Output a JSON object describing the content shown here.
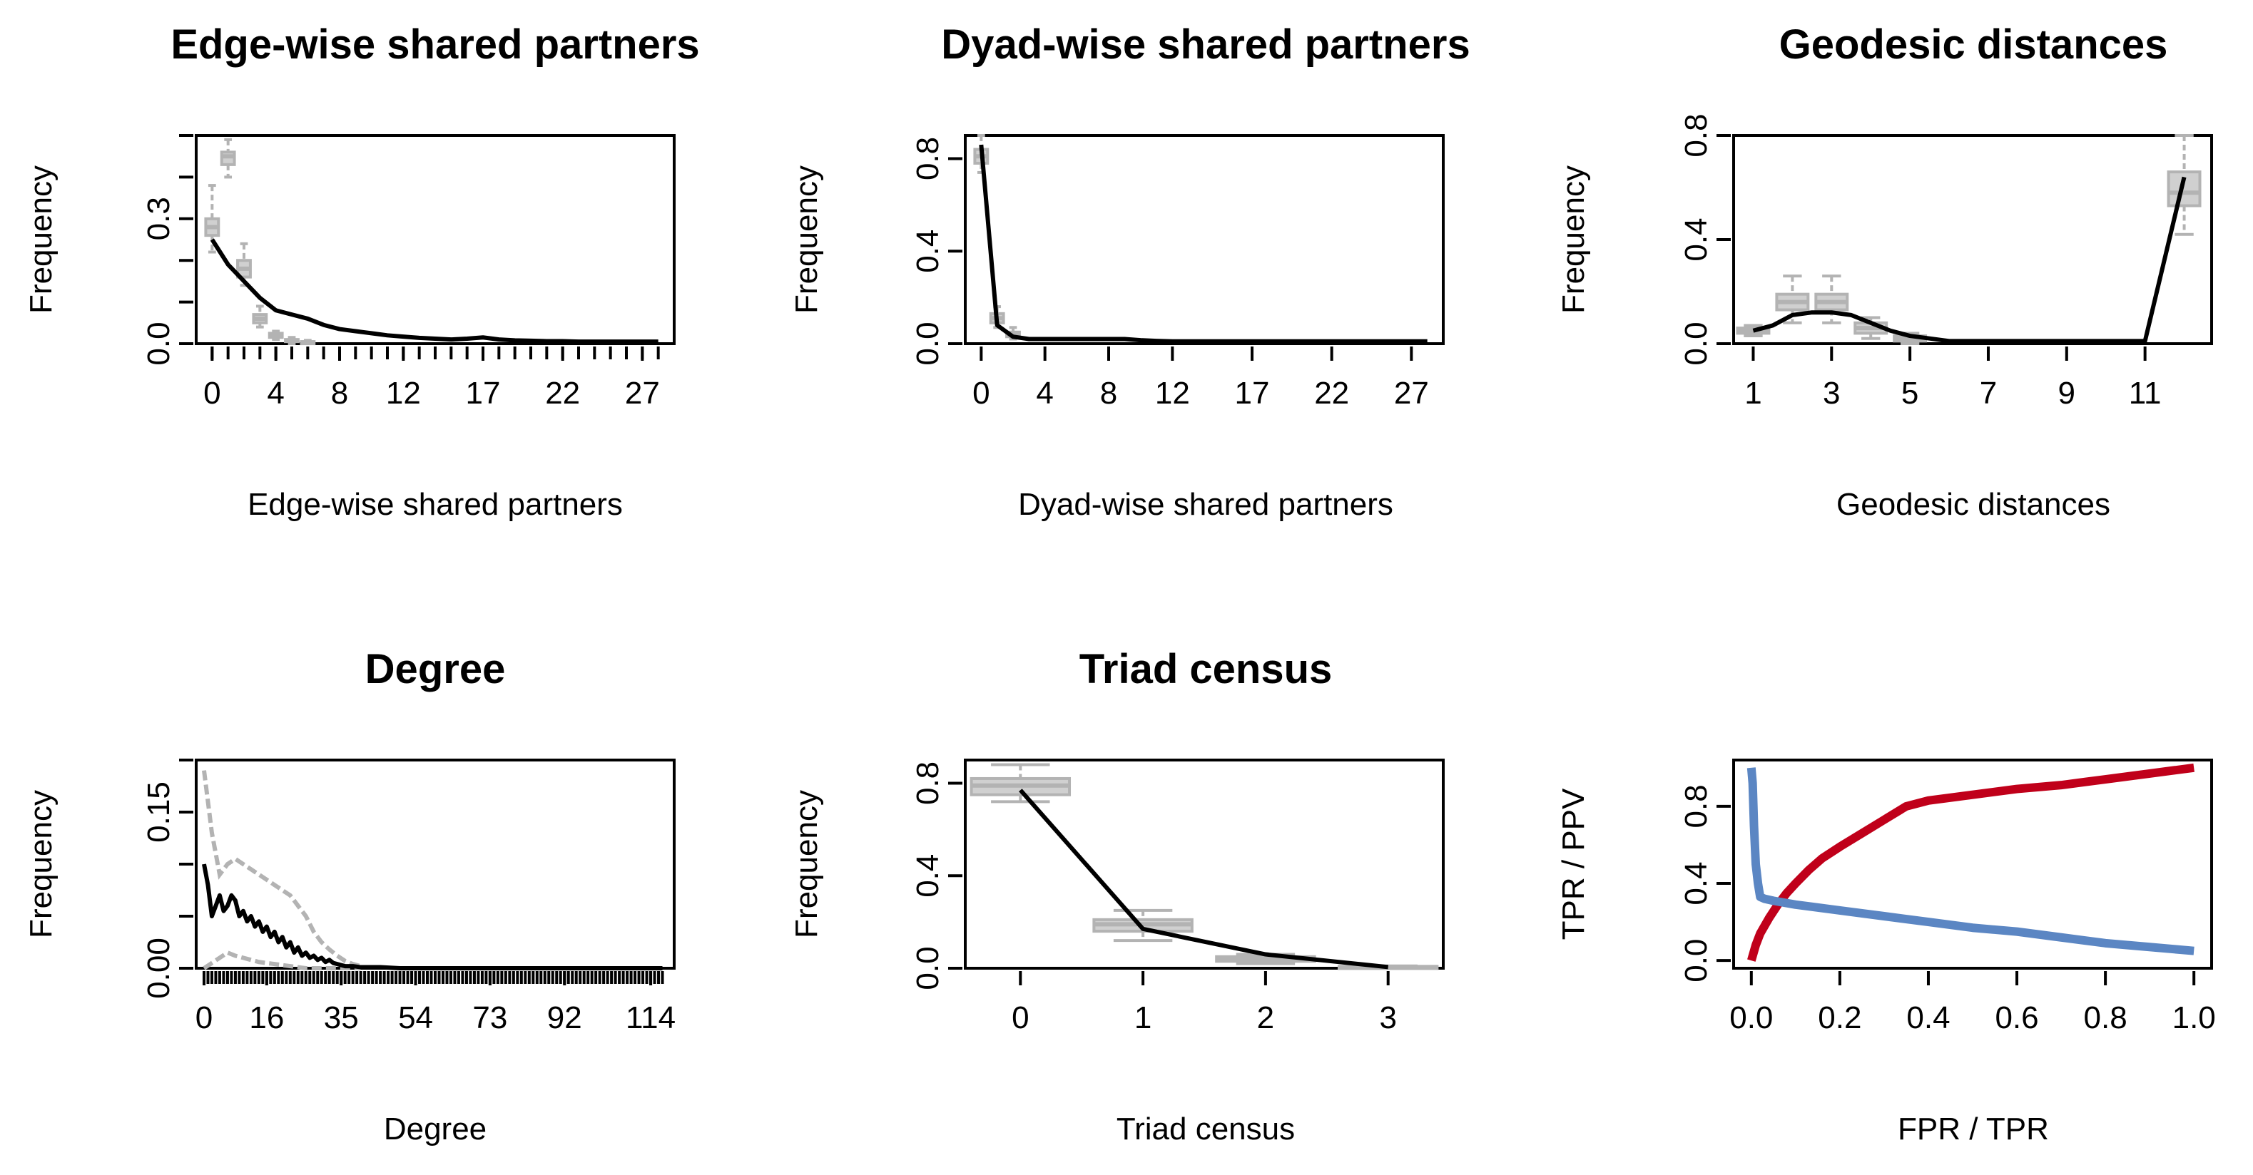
{
  "colors": {
    "simulated": "#b3b3b3",
    "observed": "#000000",
    "roc": "#c0001a",
    "pr": "#5b86c3"
  },
  "chart_data": [
    {
      "type": "box",
      "title": "Edge-wise shared partners",
      "xlabel": "Edge-wise shared partners",
      "ylabel": "Frequency",
      "xlim": [
        -1,
        29
      ],
      "ylim": [
        0,
        0.5
      ],
      "x_ticks": [
        0,
        4,
        8,
        12,
        17,
        22,
        27
      ],
      "y_ticks": [
        0.0,
        0.3
      ],
      "y_tick_labels": [
        "0.0",
        "0.3"
      ],
      "minor_ticks": [
        0,
        1,
        2,
        3,
        4,
        5,
        6,
        7,
        8,
        9,
        10,
        11,
        12,
        13,
        14,
        15,
        16,
        17,
        18,
        19,
        20,
        21,
        22,
        23,
        24,
        25,
        26,
        27,
        28
      ],
      "boxes": [
        {
          "x": 0,
          "lo": 0.22,
          "q1": 0.26,
          "med": 0.28,
          "q3": 0.3,
          "hi": 0.38
        },
        {
          "x": 1,
          "lo": 0.4,
          "q1": 0.43,
          "med": 0.45,
          "q3": 0.46,
          "hi": 0.49
        },
        {
          "x": 2,
          "lo": 0.14,
          "q1": 0.16,
          "med": 0.18,
          "q3": 0.2,
          "hi": 0.24
        },
        {
          "x": 3,
          "lo": 0.04,
          "q1": 0.05,
          "med": 0.06,
          "q3": 0.07,
          "hi": 0.09
        },
        {
          "x": 4,
          "lo": 0.01,
          "q1": 0.015,
          "med": 0.02,
          "q3": 0.025,
          "hi": 0.03
        },
        {
          "x": 5,
          "lo": 0.0,
          "q1": 0.005,
          "med": 0.008,
          "q3": 0.01,
          "hi": 0.015
        },
        {
          "x": 6,
          "lo": 0.0,
          "q1": 0.0,
          "med": 0.003,
          "q3": 0.005,
          "hi": 0.008
        }
      ],
      "observed": {
        "x": [
          0,
          1,
          2,
          3,
          4,
          5,
          6,
          7,
          8,
          9,
          10,
          11,
          12,
          13,
          14,
          15,
          16,
          17,
          18,
          19,
          20,
          21,
          22,
          23,
          24,
          25,
          26,
          27,
          28
        ],
        "y": [
          0.25,
          0.19,
          0.15,
          0.11,
          0.08,
          0.07,
          0.06,
          0.045,
          0.035,
          0.03,
          0.025,
          0.02,
          0.017,
          0.014,
          0.012,
          0.01,
          0.012,
          0.015,
          0.01,
          0.008,
          0.007,
          0.006,
          0.006,
          0.005,
          0.005,
          0.005,
          0.005,
          0.005,
          0.005
        ]
      }
    },
    {
      "type": "box",
      "title": "Dyad-wise shared partners",
      "xlabel": "Dyad-wise shared partners",
      "ylabel": "Frequency",
      "xlim": [
        -1,
        29
      ],
      "ylim": [
        0,
        0.9
      ],
      "x_ticks": [
        0,
        4,
        8,
        12,
        17,
        22,
        27
      ],
      "y_ticks": [
        0.0,
        0.4,
        0.8
      ],
      "y_tick_labels": [
        "0.0",
        "0.4",
        "0.8"
      ],
      "minor_ticks": [],
      "boxes": [
        {
          "x": 0,
          "lo": 0.74,
          "q1": 0.78,
          "med": 0.81,
          "q3": 0.84,
          "hi": 0.9
        },
        {
          "x": 1,
          "lo": 0.07,
          "q1": 0.09,
          "med": 0.11,
          "q3": 0.13,
          "hi": 0.16
        },
        {
          "x": 2,
          "lo": 0.02,
          "q1": 0.03,
          "med": 0.04,
          "q3": 0.05,
          "hi": 0.07
        }
      ],
      "observed": {
        "x": [
          0,
          1,
          2,
          3,
          4,
          5,
          6,
          7,
          8,
          9,
          10,
          11,
          12,
          13,
          14,
          15,
          16,
          17,
          18,
          19,
          20,
          21,
          22,
          23,
          24,
          25,
          26,
          27,
          28
        ],
        "y": [
          0.86,
          0.08,
          0.03,
          0.02,
          0.02,
          0.02,
          0.02,
          0.02,
          0.02,
          0.02,
          0.015,
          0.012,
          0.01,
          0.01,
          0.01,
          0.01,
          0.01,
          0.01,
          0.01,
          0.01,
          0.01,
          0.01,
          0.01,
          0.01,
          0.01,
          0.01,
          0.01,
          0.01,
          0.01
        ]
      }
    },
    {
      "type": "box",
      "title": "Geodesic distances",
      "xlabel": "Geodesic distances",
      "ylabel": "Frequency",
      "xlim": [
        0.5,
        12.7
      ],
      "ylim": [
        0,
        0.8
      ],
      "x_ticks": [
        1,
        3,
        5,
        7,
        9,
        11
      ],
      "y_ticks": [
        0.0,
        0.4,
        0.8
      ],
      "y_tick_labels": [
        "0.0",
        "0.4",
        "0.8"
      ],
      "minor_ticks": [],
      "boxes": [
        {
          "x": 1,
          "lo": 0.03,
          "q1": 0.04,
          "med": 0.05,
          "q3": 0.06,
          "hi": 0.07
        },
        {
          "x": 2,
          "lo": 0.08,
          "q1": 0.13,
          "med": 0.16,
          "q3": 0.19,
          "hi": 0.26
        },
        {
          "x": 3,
          "lo": 0.08,
          "q1": 0.13,
          "med": 0.16,
          "q3": 0.19,
          "hi": 0.26
        },
        {
          "x": 4,
          "lo": 0.02,
          "q1": 0.04,
          "med": 0.06,
          "q3": 0.08,
          "hi": 0.1
        },
        {
          "x": 5,
          "lo": 0.0,
          "q1": 0.01,
          "med": 0.02,
          "q3": 0.03,
          "hi": 0.04
        },
        {
          "x": 12,
          "lo": 0.42,
          "q1": 0.53,
          "med": 0.58,
          "q3": 0.66,
          "hi": 0.8
        }
      ],
      "observed": {
        "x": [
          1,
          1.5,
          2,
          2.5,
          3,
          3.5,
          4,
          4.5,
          5,
          5.5,
          6,
          7,
          8,
          9,
          10,
          11,
          12
        ],
        "y": [
          0.05,
          0.07,
          0.11,
          0.12,
          0.12,
          0.11,
          0.08,
          0.05,
          0.03,
          0.02,
          0.01,
          0.01,
          0.01,
          0.01,
          0.01,
          0.01,
          0.64
        ]
      }
    },
    {
      "type": "box",
      "title": "Degree",
      "xlabel": "Degree",
      "ylabel": "Frequency",
      "xlim": [
        -2,
        120
      ],
      "ylim": [
        0,
        0.2
      ],
      "x_ticks": [
        0,
        16,
        35,
        54,
        73,
        92,
        114
      ],
      "y_ticks": [
        0.0,
        0.15
      ],
      "y_tick_labels": [
        "0.00",
        "0.15"
      ],
      "minor_ticks": [
        0,
        1,
        2,
        3,
        4,
        5,
        6,
        7,
        8,
        9,
        10,
        11,
        12,
        13,
        14,
        15,
        16,
        17,
        18,
        19,
        20,
        21,
        22,
        23,
        24,
        25,
        26,
        27,
        28,
        29,
        30,
        31,
        32,
        33,
        34,
        35,
        36,
        37,
        38,
        39,
        40,
        41,
        42,
        43,
        44,
        45,
        46,
        47,
        48,
        49,
        50,
        51,
        52,
        53,
        54,
        55,
        56,
        57,
        58,
        59,
        60,
        61,
        62,
        63,
        64,
        65,
        66,
        67,
        68,
        69,
        70,
        71,
        72,
        73,
        74,
        75,
        76,
        77,
        78,
        79,
        80,
        81,
        82,
        83,
        84,
        85,
        86,
        87,
        88,
        89,
        90,
        91,
        92,
        93,
        94,
        95,
        96,
        97,
        98,
        99,
        100,
        101,
        102,
        103,
        104,
        105,
        106,
        107,
        108,
        109,
        110,
        111,
        112,
        113,
        114,
        115,
        116,
        117
      ],
      "sim_band": {
        "x": [
          0,
          2,
          4,
          6,
          8,
          10,
          12,
          14,
          16,
          18,
          20,
          22,
          24,
          26,
          28,
          30,
          32,
          34,
          36,
          38,
          40
        ],
        "lo": [
          0.0,
          0.005,
          0.01,
          0.015,
          0.012,
          0.01,
          0.008,
          0.006,
          0.005,
          0.004,
          0.003,
          0.002,
          0.001,
          0.0,
          0.0,
          0.0,
          0.0,
          0.0,
          0.0,
          0.0,
          0.0
        ],
        "hi": [
          0.19,
          0.13,
          0.09,
          0.1,
          0.105,
          0.1,
          0.095,
          0.09,
          0.085,
          0.08,
          0.075,
          0.07,
          0.06,
          0.05,
          0.035,
          0.025,
          0.018,
          0.012,
          0.007,
          0.004,
          0.002
        ]
      },
      "observed": {
        "x": [
          0,
          1,
          2,
          3,
          4,
          5,
          6,
          7,
          8,
          9,
          10,
          11,
          12,
          13,
          14,
          15,
          16,
          17,
          18,
          19,
          20,
          21,
          22,
          23,
          24,
          25,
          26,
          27,
          28,
          29,
          30,
          31,
          32,
          33,
          34,
          35,
          36,
          38,
          40,
          45,
          50,
          60,
          70,
          80,
          90,
          100,
          110,
          117
        ],
        "y": [
          0.1,
          0.08,
          0.05,
          0.06,
          0.07,
          0.055,
          0.06,
          0.07,
          0.065,
          0.05,
          0.055,
          0.045,
          0.05,
          0.04,
          0.045,
          0.035,
          0.04,
          0.03,
          0.035,
          0.025,
          0.03,
          0.02,
          0.025,
          0.015,
          0.02,
          0.012,
          0.015,
          0.01,
          0.012,
          0.008,
          0.01,
          0.006,
          0.008,
          0.005,
          0.004,
          0.003,
          0.002,
          0.002,
          0.001,
          0.001,
          0.0,
          0.0,
          0.0,
          0.0,
          0.0,
          0.0,
          0.0,
          0.0
        ]
      }
    },
    {
      "type": "box",
      "title": "Triad census",
      "xlabel": "Triad census",
      "ylabel": "Frequency",
      "xlim": [
        -0.45,
        3.45
      ],
      "ylim": [
        0,
        0.9
      ],
      "x_ticks": [
        0,
        1,
        2,
        3
      ],
      "y_ticks": [
        0.0,
        0.4,
        0.8
      ],
      "y_tick_labels": [
        "0.0",
        "0.4",
        "0.8"
      ],
      "minor_ticks": [],
      "boxes": [
        {
          "x": 0,
          "lo": 0.72,
          "q1": 0.75,
          "med": 0.79,
          "q3": 0.82,
          "hi": 0.88
        },
        {
          "x": 1,
          "lo": 0.12,
          "q1": 0.16,
          "med": 0.19,
          "q3": 0.21,
          "hi": 0.25
        },
        {
          "x": 2,
          "lo": 0.02,
          "q1": 0.03,
          "med": 0.04,
          "q3": 0.05,
          "hi": 0.06
        },
        {
          "x": 3,
          "lo": 0.0,
          "q1": 0.003,
          "med": 0.005,
          "q3": 0.008,
          "hi": 0.01
        }
      ],
      "observed": {
        "x": [
          0,
          1,
          2,
          3
        ],
        "y": [
          0.77,
          0.17,
          0.06,
          0.005
        ]
      }
    },
    {
      "type": "line",
      "title": "",
      "xlabel": "FPR / TPR",
      "ylabel": "TPR / PPV",
      "xlim": [
        -0.04,
        1.04
      ],
      "ylim": [
        -0.04,
        1.04
      ],
      "x_ticks": [
        0.0,
        0.2,
        0.4,
        0.6,
        0.8,
        1.0
      ],
      "x_tick_labels": [
        "0.0",
        "0.2",
        "0.4",
        "0.6",
        "0.8",
        "1.0"
      ],
      "y_ticks": [
        0.0,
        0.4,
        0.8
      ],
      "y_tick_labels": [
        "0.0",
        "0.4",
        "0.8"
      ],
      "series": [
        {
          "color_key": "roc",
          "x": [
            0.0,
            0.01,
            0.02,
            0.04,
            0.06,
            0.08,
            0.1,
            0.13,
            0.16,
            0.2,
            0.25,
            0.3,
            0.35,
            0.4,
            0.5,
            0.6,
            0.7,
            0.8,
            0.9,
            1.0
          ],
          "y": [
            0.0,
            0.08,
            0.14,
            0.22,
            0.29,
            0.35,
            0.4,
            0.47,
            0.53,
            0.59,
            0.66,
            0.73,
            0.8,
            0.83,
            0.86,
            0.89,
            0.91,
            0.94,
            0.97,
            1.0
          ]
        },
        {
          "color_key": "pr",
          "x": [
            0.0,
            0.003,
            0.006,
            0.01,
            0.015,
            0.02,
            0.03,
            0.05,
            0.1,
            0.2,
            0.3,
            0.4,
            0.5,
            0.6,
            0.7,
            0.8,
            0.9,
            1.0
          ],
          "y": [
            1.0,
            0.92,
            0.7,
            0.5,
            0.4,
            0.33,
            0.32,
            0.31,
            0.29,
            0.26,
            0.23,
            0.2,
            0.17,
            0.15,
            0.12,
            0.09,
            0.07,
            0.05
          ]
        }
      ]
    }
  ]
}
